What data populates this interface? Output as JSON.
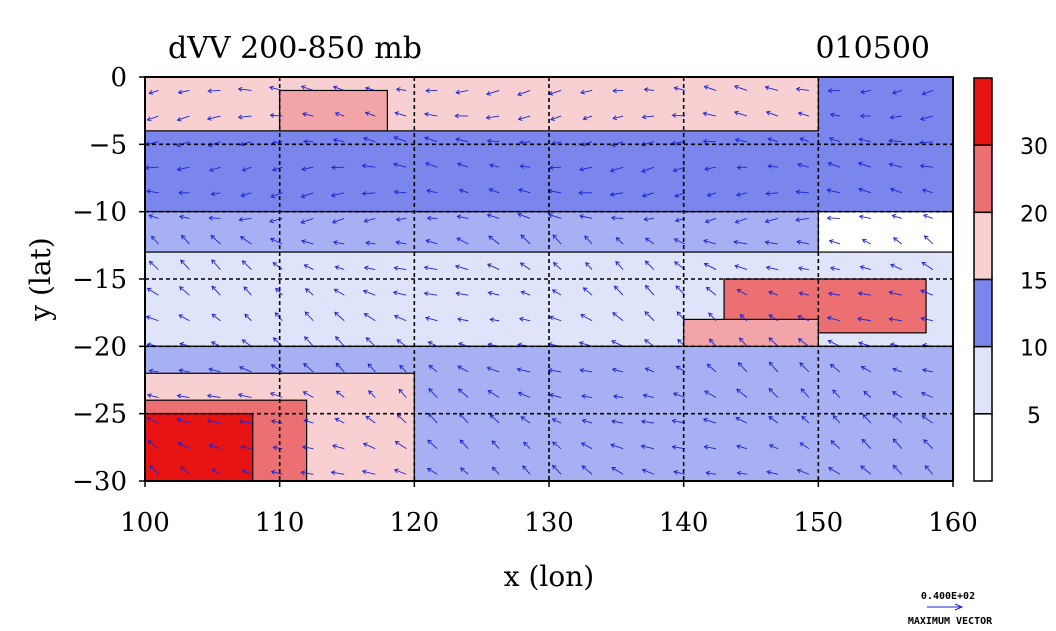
{
  "chart_data": {
    "type": "heatmap",
    "title": "dVV 200-850 mb",
    "date_label": "010500",
    "xlabel": "x (lon)",
    "ylabel": "y (lat)",
    "xlim": [
      100,
      160
    ],
    "ylim": [
      -30,
      0
    ],
    "x_ticks": [
      100,
      110,
      120,
      130,
      140,
      150,
      160
    ],
    "y_ticks": [
      0,
      -5,
      -10,
      -15,
      -20,
      -25,
      -30
    ],
    "grid": true,
    "colorbar": {
      "levels": [
        0,
        5,
        10,
        15,
        20,
        25,
        30,
        35
      ],
      "tick_labels": [
        "5",
        "10",
        "15",
        "20",
        "30"
      ],
      "colors": [
        "#ffffff",
        "#e0e4fb",
        "#a8b0f4",
        "#7b86ec",
        "#f9d0d2",
        "#f3a4a6",
        "#ec6f72",
        "#e81414"
      ]
    },
    "regions": [
      {
        "level": 3,
        "lon": [
          100,
          160
        ],
        "lat": [
          -10,
          0
        ]
      },
      {
        "level": 4,
        "lon": [
          100,
          150
        ],
        "lat": [
          -4,
          0
        ]
      },
      {
        "level": 5,
        "lon": [
          110,
          118
        ],
        "lat": [
          -4,
          -1
        ]
      },
      {
        "level": 2,
        "lon": [
          100,
          150
        ],
        "lat": [
          -13,
          -10
        ]
      },
      {
        "level": 1,
        "lon": [
          100,
          160
        ],
        "lat": [
          -20,
          -13
        ]
      },
      {
        "level": 6,
        "lon": [
          143,
          158
        ],
        "lat": [
          -19,
          -15
        ]
      },
      {
        "level": 5,
        "lon": [
          140,
          150
        ],
        "lat": [
          -21,
          -18
        ]
      },
      {
        "level": 2,
        "lon": [
          100,
          160
        ],
        "lat": [
          -30,
          -20
        ]
      },
      {
        "level": 4,
        "lon": [
          100,
          120
        ],
        "lat": [
          -30,
          -22
        ]
      },
      {
        "level": 6,
        "lon": [
          100,
          112
        ],
        "lat": [
          -30,
          -24
        ]
      },
      {
        "level": 7,
        "lon": [
          100,
          108
        ],
        "lat": [
          -30,
          -25
        ]
      }
    ],
    "vector_reference": {
      "value_label": "0.400E+02",
      "caption": "MAXIMUM VECTOR"
    },
    "colors": {
      "vector": "#1a24d6",
      "contour": "#000000",
      "grid": "#000000"
    }
  }
}
